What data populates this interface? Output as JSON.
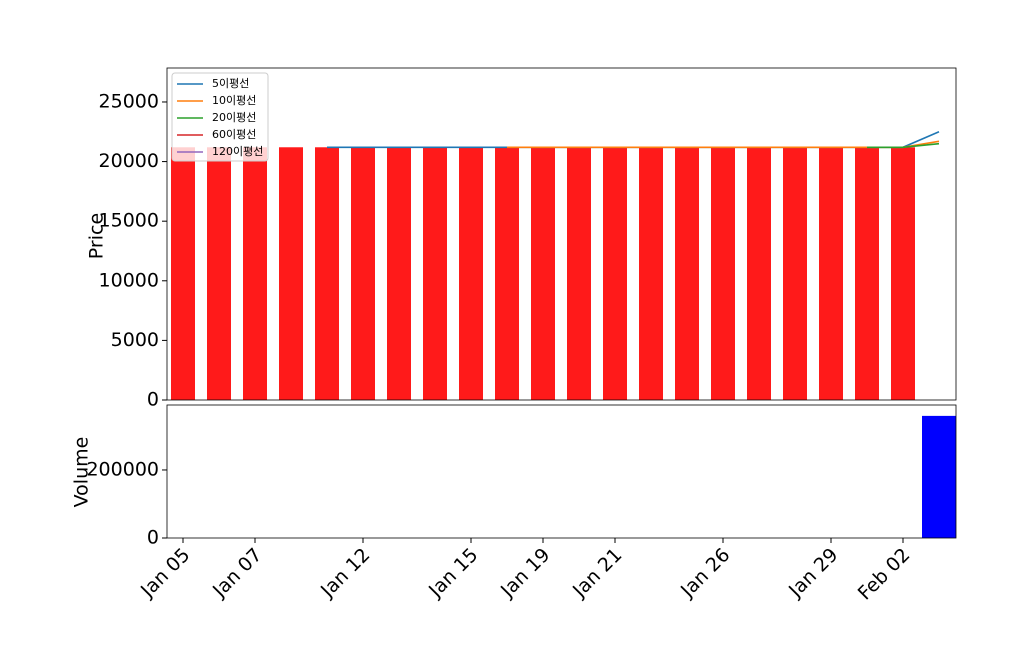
{
  "chart_data": {
    "type": "bar",
    "categories": [
      "Jan 05",
      null,
      "Jan 07",
      null,
      null,
      "Jan 12",
      null,
      null,
      "Jan 15",
      null,
      "Jan 19",
      null,
      "Jan 21",
      null,
      null,
      "Jan 26",
      null,
      null,
      "Jan 29",
      null,
      "Feb 02",
      null
    ],
    "values": [
      21200,
      21200,
      21200,
      21200,
      21200,
      21200,
      21200,
      21200,
      21200,
      21200,
      21200,
      21200,
      21200,
      21200,
      21200,
      21200,
      21200,
      21200,
      21200,
      21200,
      21200,
      null
    ],
    "color": "#ff1a1a",
    "ylabel": "Price",
    "ylim": [
      0,
      27850
    ],
    "yticks": [
      0,
      5000,
      10000,
      15000,
      20000,
      25000
    ],
    "series": [
      {
        "name": "5이평선",
        "color": "#1f77b4",
        "values": [
          null,
          null,
          null,
          null,
          21200,
          21200,
          21200,
          21200,
          21200,
          21200,
          21200,
          21200,
          21200,
          21200,
          21200,
          21200,
          21200,
          21200,
          21200,
          21200,
          21200,
          22500
        ]
      },
      {
        "name": "10이평선",
        "color": "#ff7f0e",
        "values": [
          null,
          null,
          null,
          null,
          null,
          null,
          null,
          null,
          null,
          21200,
          21200,
          21200,
          21200,
          21200,
          21200,
          21200,
          21200,
          21200,
          21200,
          21200,
          21200,
          21700
        ]
      },
      {
        "name": "20이평선",
        "color": "#2ca02c",
        "values": [
          null,
          null,
          null,
          null,
          null,
          null,
          null,
          null,
          null,
          null,
          null,
          null,
          null,
          null,
          null,
          null,
          null,
          null,
          null,
          21200,
          21200,
          21500
        ]
      },
      {
        "name": "60이평선",
        "color": "#d62728",
        "values": [
          null,
          null,
          null,
          null,
          null,
          null,
          null,
          null,
          null,
          null,
          null,
          null,
          null,
          null,
          null,
          null,
          null,
          null,
          null,
          null,
          null,
          null
        ]
      },
      {
        "name": "120이평선",
        "color": "#9467bd",
        "values": [
          null,
          null,
          null,
          null,
          null,
          null,
          null,
          null,
          null,
          null,
          null,
          null,
          null,
          null,
          null,
          null,
          null,
          null,
          null,
          null,
          null,
          null
        ]
      }
    ],
    "volume": {
      "ylabel": "Volume",
      "color": "#0000ff",
      "values": [
        0,
        0,
        0,
        0,
        0,
        0,
        0,
        0,
        0,
        0,
        0,
        0,
        0,
        0,
        0,
        0,
        0,
        0,
        0,
        0,
        0,
        359000
      ],
      "ylim": [
        0,
        391000
      ],
      "yticks": [
        0,
        200000
      ]
    }
  }
}
